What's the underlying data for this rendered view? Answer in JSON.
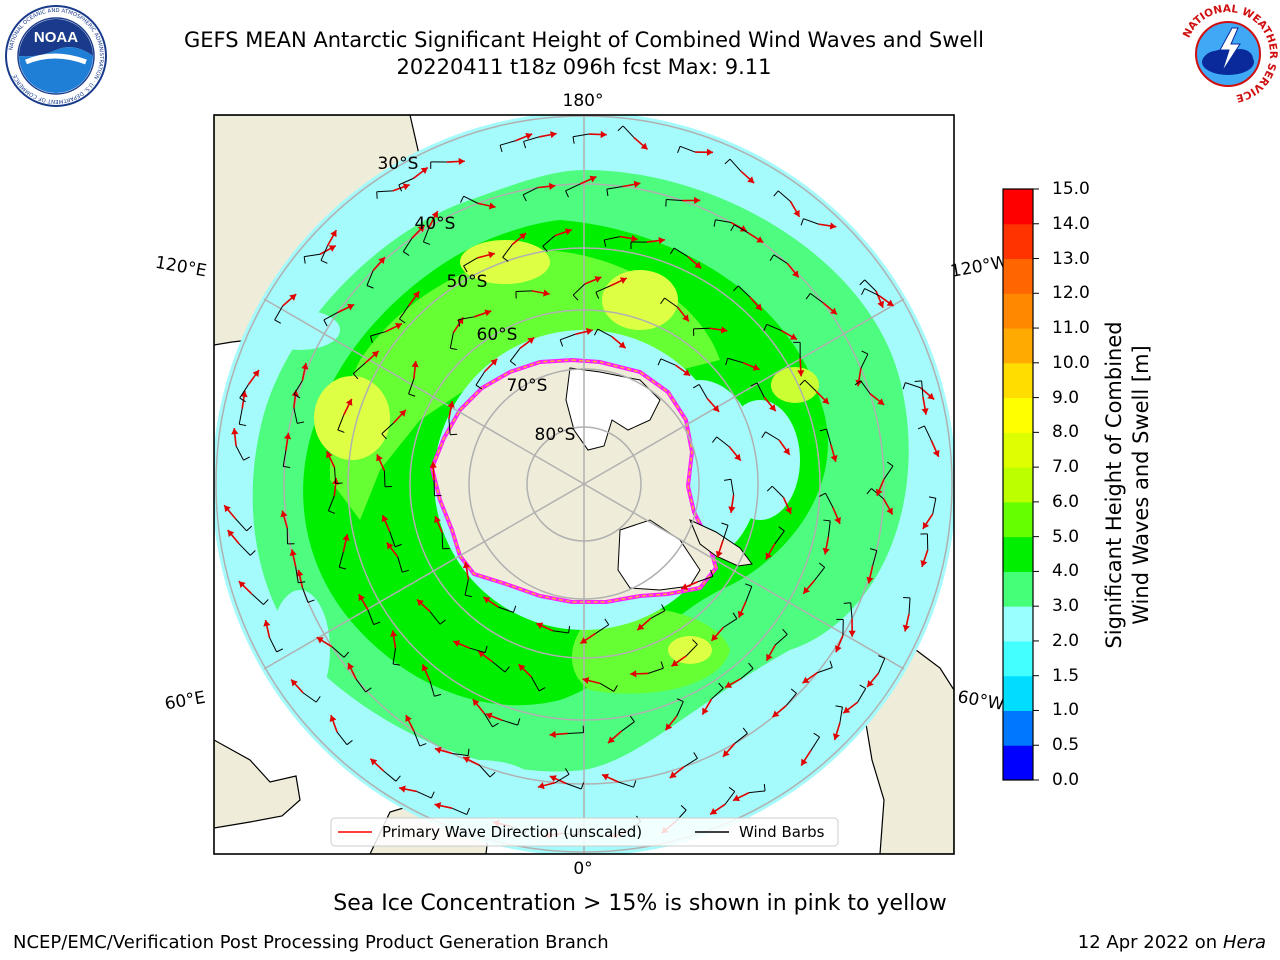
{
  "title_line1": "GEFS MEAN Antarctic Significant Height of Combined Wind Waves and Swell",
  "title_line2": "20220411 t18z 096h fcst   Max: 9.11",
  "logos": {
    "left": {
      "icon": "noaa-logo-icon",
      "text": "NOAA",
      "ring_text": "NATIONAL OCEANIC AND ATMOSPHERIC ADMINISTRATION · U.S. DEPARTMENT OF COMMERCE"
    },
    "right": {
      "icon": "nws-logo-icon",
      "ring_text": "NATIONAL WEATHER SERVICE"
    }
  },
  "map": {
    "projection": "south-polar-stereographic",
    "longitude_labels": [
      "180°",
      "120°E",
      "120°W",
      "60°E",
      "60°W",
      "0°"
    ],
    "latitude_labels": [
      "30°S",
      "40°S",
      "50°S",
      "60°S",
      "70°S",
      "80°S"
    ],
    "legend": [
      {
        "label": "Primary Wave Direction (unscaled)",
        "color": "#ff0000"
      },
      {
        "label": "Wind Barbs",
        "color": "#000000"
      }
    ]
  },
  "colorbar": {
    "title_line1": "Significant Height of Combined",
    "title_line2": "Wind Waves and Swell [m]",
    "ticks": [
      "0.0",
      "0.5",
      "1.0",
      "1.5",
      "2.0",
      "3.0",
      "4.0",
      "5.0",
      "6.0",
      "7.0",
      "8.0",
      "9.0",
      "10.0",
      "11.0",
      "12.0",
      "13.0",
      "14.0",
      "15.0"
    ],
    "colors": [
      "#0000ff",
      "#0077ff",
      "#00ddff",
      "#44ffff",
      "#99ffff",
      "#44ff77",
      "#00ee00",
      "#66ff00",
      "#bbff00",
      "#ddff00",
      "#ffff00",
      "#ffdd00",
      "#ffaa00",
      "#ff8800",
      "#ff6600",
      "#ff3300",
      "#ff0000"
    ]
  },
  "caption": "Sea Ice Concentration > 15% is shown in pink to yellow",
  "footer_left": "NCEP/EMC/Verification Post Processing Product Generation Branch",
  "footer_right_prefix": "12 Apr 2022 on ",
  "footer_right_host": "Hera"
}
